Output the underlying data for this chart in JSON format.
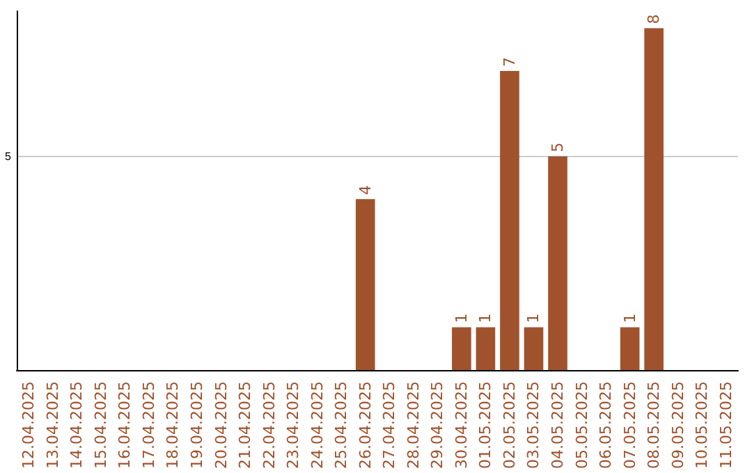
{
  "chart_data": {
    "type": "bar",
    "categories": [
      "12.04.2025",
      "13.04.2025",
      "14.04.2025",
      "15.04.2025",
      "16.04.2025",
      "17.04.2025",
      "18.04.2025",
      "19.04.2025",
      "20.04.2025",
      "21.04.2025",
      "22.04.2025",
      "23.04.2025",
      "24.04.2025",
      "25.04.2025",
      "26.04.2025",
      "27.04.2025",
      "28.04.2025",
      "29.04.2025",
      "30.04.2025",
      "01.05.2025",
      "02.05.2025",
      "03.05.2025",
      "04.05.2025",
      "05.05.2025",
      "06.05.2025",
      "07.05.2025",
      "08.05.2025",
      "09.05.2025",
      "10.05.2025",
      "11.05.2025"
    ],
    "values": [
      null,
      null,
      null,
      null,
      null,
      null,
      null,
      null,
      null,
      null,
      null,
      null,
      null,
      null,
      4,
      null,
      null,
      null,
      1,
      1,
      7,
      1,
      5,
      null,
      null,
      1,
      8,
      null,
      null,
      null
    ],
    "color": "#a0522d",
    "ylim": [
      0,
      8.4
    ],
    "yticks": [
      5
    ],
    "grid": "y",
    "data_labels": true
  }
}
